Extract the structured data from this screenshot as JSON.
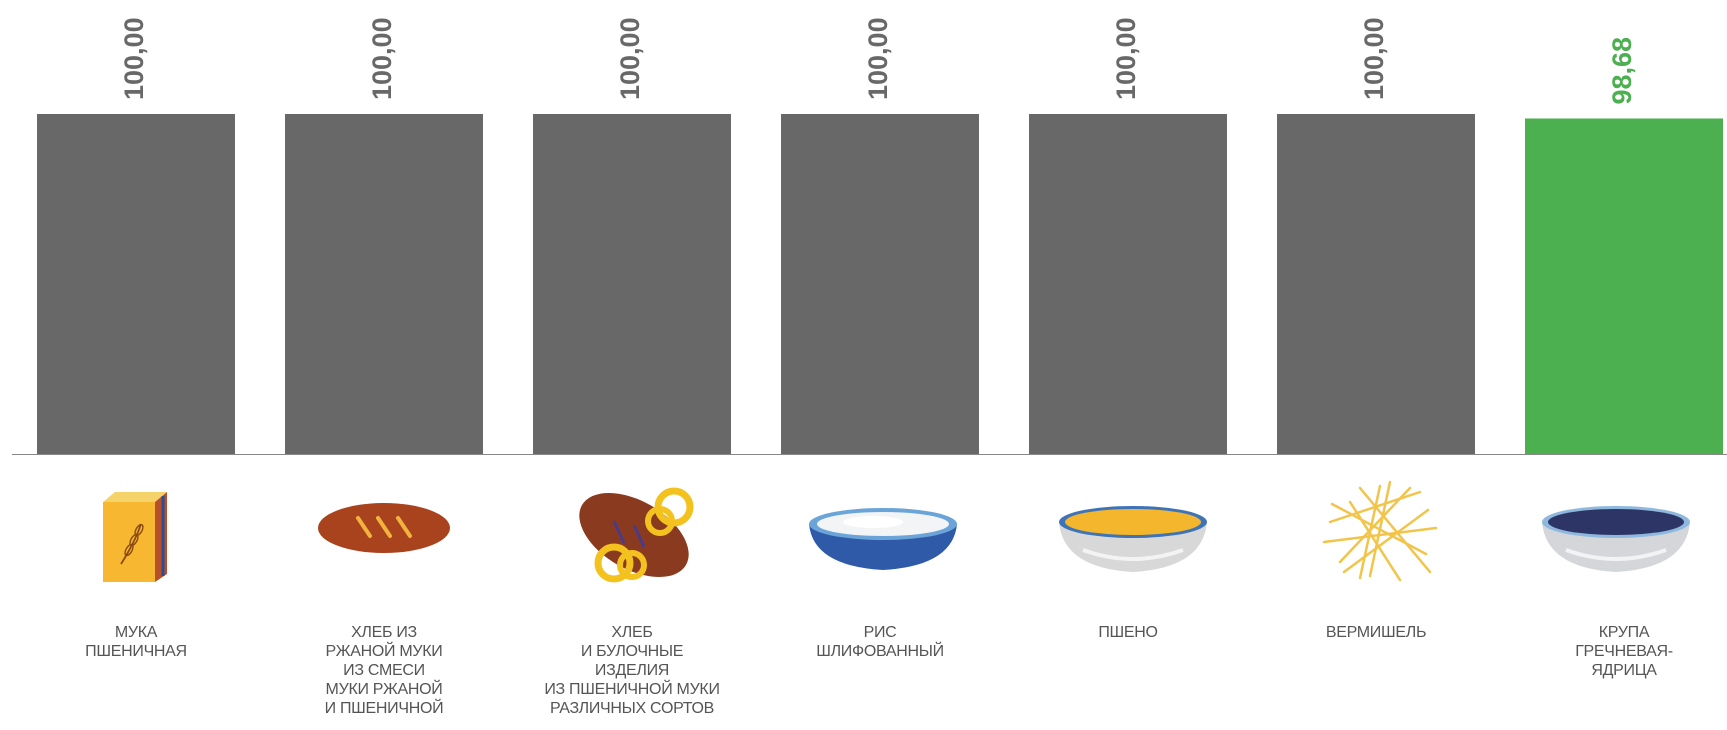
{
  "chart_data": {
    "type": "bar",
    "categories": [
      "МУКА\nПШЕНИЧНАЯ",
      "ХЛЕБ ИЗ\nРЖАНОЙ МУКИ\nИЗ СМЕСИ\nМУКИ РЖАНОЙ\nИ ПШЕНИЧНОЙ",
      "ХЛЕБ\nИ БУЛОЧНЫЕ\nИЗДЕЛИЯ\nИЗ ПШЕНИЧНОЙ МУКИ\nРАЗЛИЧНЫХ СОРТОВ",
      "РИС\nШЛИФОВАННЫЙ",
      "ПШЕНО",
      "ВЕРМИШЕЛЬ",
      "КРУПА\nГРЕЧНЕВАЯ-\nЯДРИЦА"
    ],
    "values": [
      100.0,
      100.0,
      100.0,
      100.0,
      100.0,
      100.0,
      98.68
    ],
    "value_labels": [
      "100,00",
      "100,00",
      "100,00",
      "100,00",
      "100,00",
      "100,00",
      "98,68"
    ],
    "title": "",
    "xlabel": "",
    "ylabel": "",
    "ylim": [
      0,
      100
    ],
    "grid": false,
    "legend": "none",
    "colors": {
      "default_bar": "#686868",
      "highlight_bar": "#4caf50",
      "default_label": "#686868",
      "highlight_label": "#4caf50",
      "axis": "#888888",
      "category_text": "#555555"
    },
    "highlight_index": 6,
    "icons": [
      "flour-bag-icon",
      "rye-bread-icon",
      "bread-and-pretzels-icon",
      "rice-bowl-icon",
      "millet-bowl-icon",
      "vermicelli-icon",
      "buckwheat-bowl-icon"
    ]
  }
}
